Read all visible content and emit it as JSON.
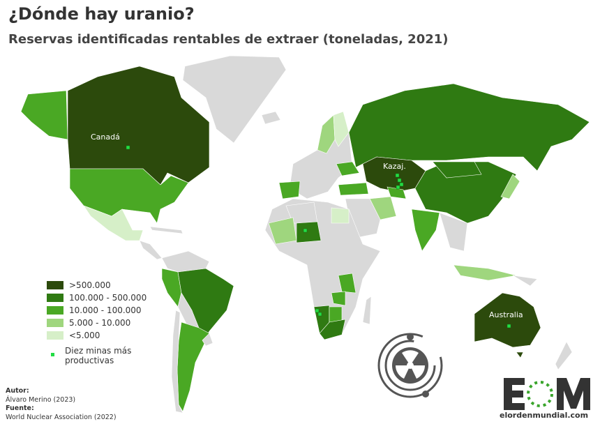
{
  "header": {
    "title": "¿Dónde hay uranio?",
    "subtitle": "Reservas identificadas rentables de extraer (toneladas, 2021)"
  },
  "legend": {
    "items": [
      {
        "label": ">500.000",
        "color": "#2c4a0c"
      },
      {
        "label": "100.000 - 500.000",
        "color": "#2f7a12"
      },
      {
        "label": "10.000 - 100.000",
        "color": "#4aa824"
      },
      {
        "label": "5.000 - 10.000",
        "color": "#9fd67e"
      },
      {
        "label": "<5.000",
        "color": "#d6efc8"
      }
    ],
    "mines_label": "Diez minas más productivas",
    "mine_color": "#22dd44",
    "no_data_color": "#d9d9d9"
  },
  "map": {
    "labels": {
      "canada": "Canadá",
      "kazakhstan": "Kazaj.",
      "australia": "Australia"
    }
  },
  "credits": {
    "author_label": "Autor:",
    "author": "Álvaro Merino (2023)",
    "source_label": "Fuente:",
    "source": "World Nuclear Association (2022)"
  },
  "logo": {
    "text": "EOM",
    "url": "elordenmundial.com",
    "icon": "radiation-atom-icon"
  }
}
